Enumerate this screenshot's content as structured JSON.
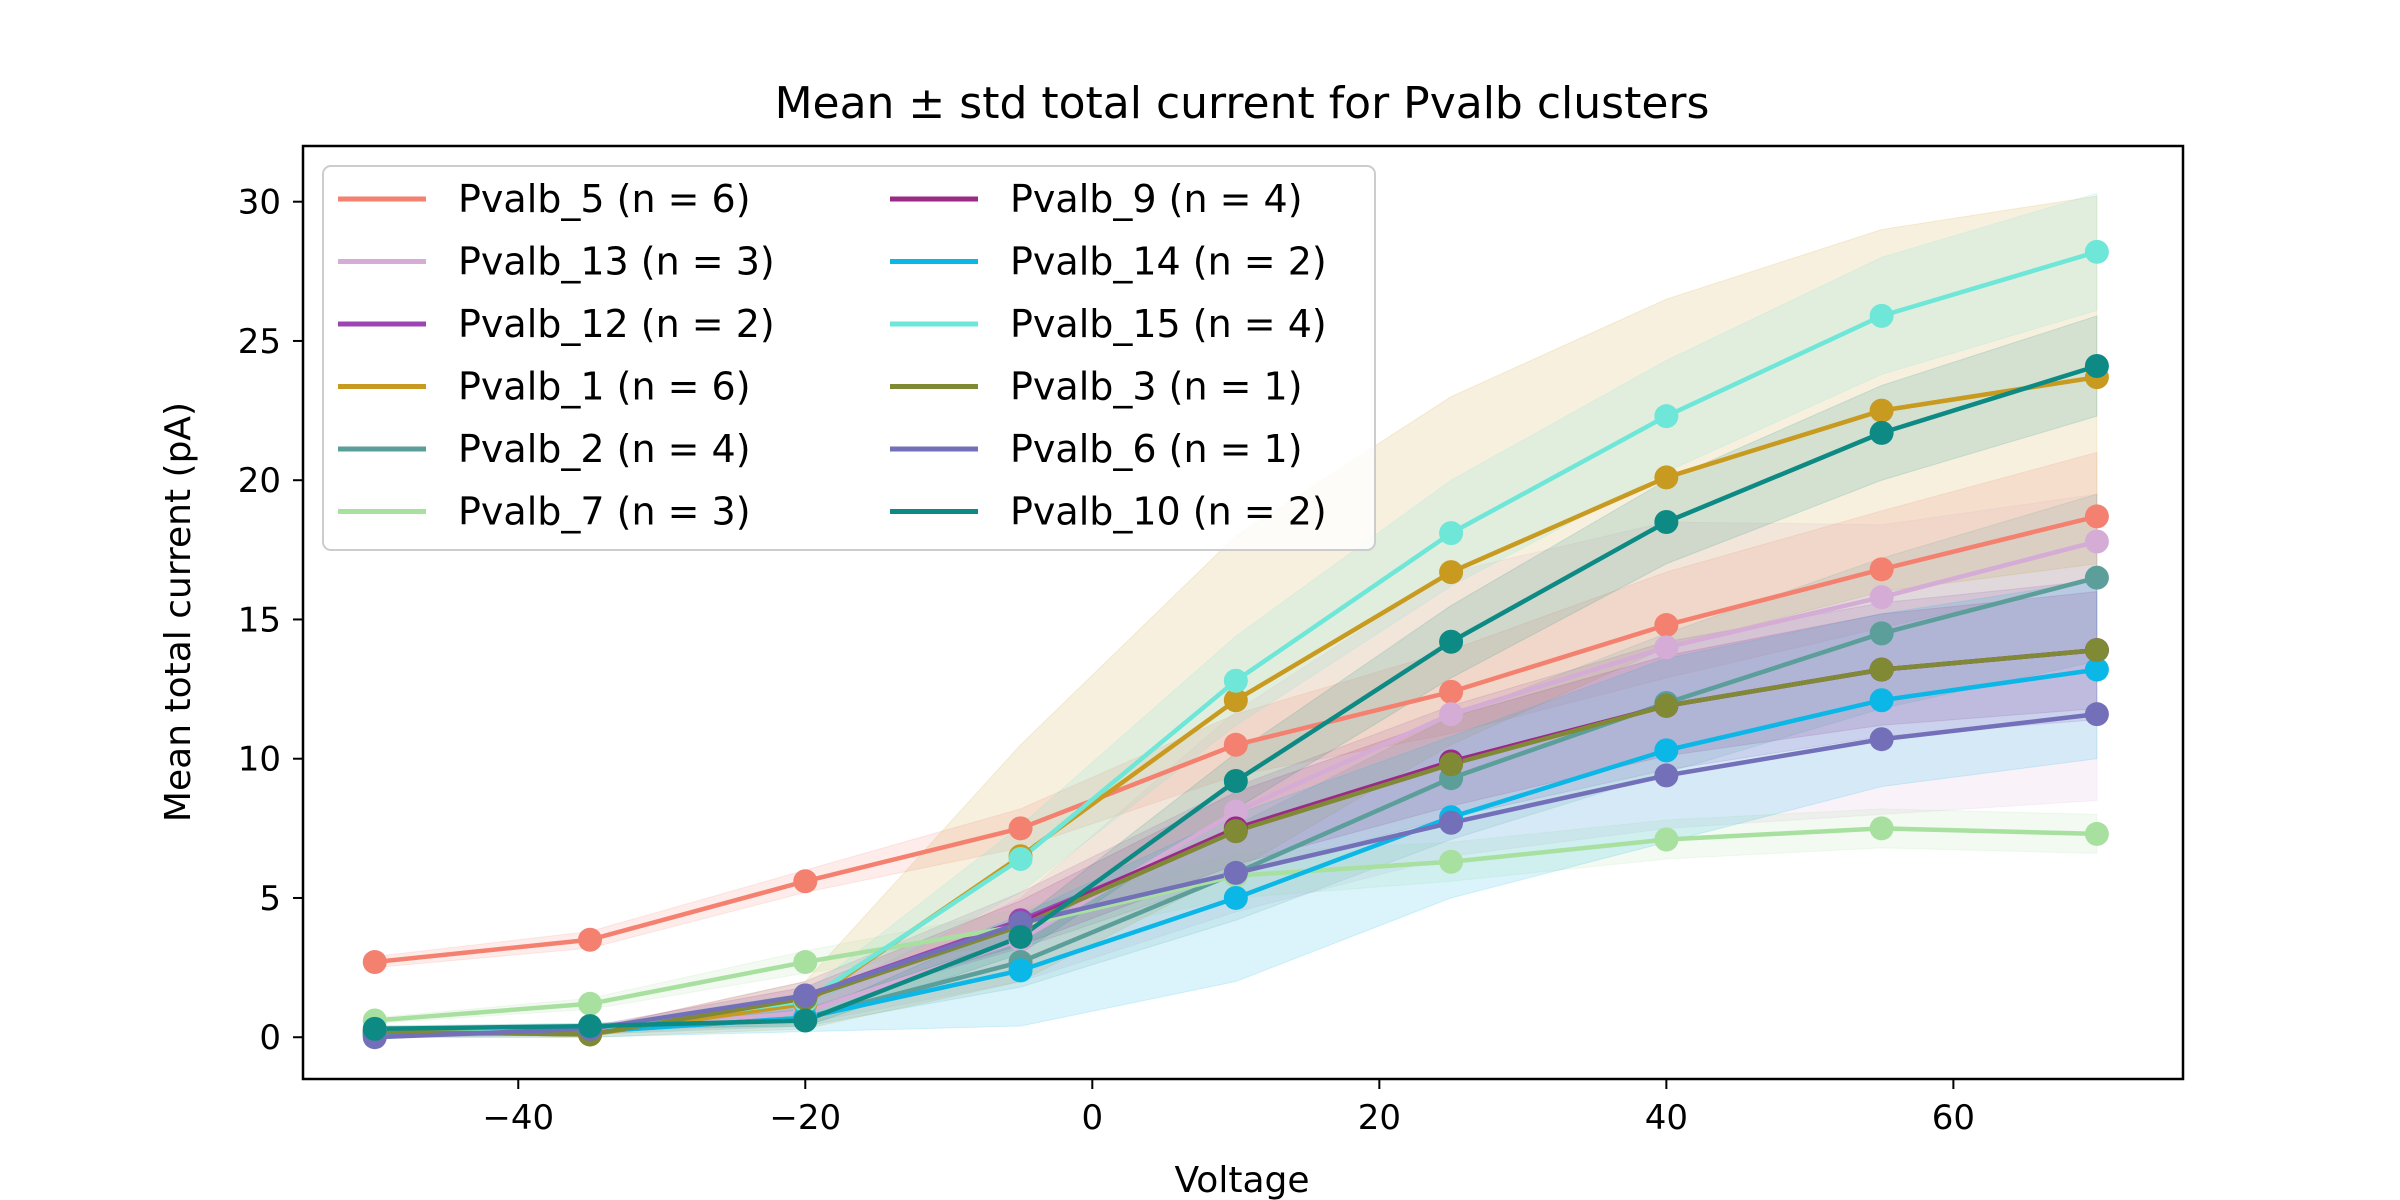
{
  "chart_data": {
    "type": "line",
    "title": "Mean ± std total current for Pvalb clusters",
    "xlabel": "Voltage",
    "ylabel": "Mean total current (pA)",
    "xlim": [
      -55,
      76
    ],
    "ylim": [
      -1.5,
      32
    ],
    "xticks": [
      -40,
      -20,
      0,
      20,
      40,
      60
    ],
    "xtick_labels": [
      "−40",
      "−20",
      "0",
      "20",
      "40",
      "60"
    ],
    "yticks": [
      0,
      5,
      10,
      15,
      20,
      25,
      30
    ],
    "ytick_labels": [
      "0",
      "5",
      "10",
      "15",
      "20",
      "25",
      "30"
    ],
    "grid": false,
    "legend_position": "upper-left",
    "legend_columns": 2,
    "x": [
      -50,
      -35,
      -20,
      -5,
      10,
      25,
      40,
      55,
      70
    ],
    "series": [
      {
        "name": "Pvalb_5 (n = 6)",
        "color": "#f4806f",
        "values": [
          2.7,
          3.5,
          5.6,
          7.5,
          10.5,
          12.4,
          14.8,
          16.8,
          18.7
        ],
        "std_lower": [
          2.5,
          3.2,
          5.2,
          6.8,
          9.4,
          10.9,
          12.9,
          14.7,
          16.4
        ],
        "std_upper": [
          2.9,
          3.8,
          6.0,
          8.2,
          11.6,
          13.9,
          16.7,
          18.9,
          21.0
        ]
      },
      {
        "name": "Pvalb_13 (n = 3)",
        "color": "#d4acd6",
        "values": [
          0.1,
          0.2,
          0.9,
          3.5,
          8.1,
          11.6,
          14.0,
          15.8,
          17.8
        ],
        "std_lower": [
          0.0,
          0.1,
          0.5,
          2.0,
          4.5,
          6.5,
          7.5,
          8.0,
          8.5
        ],
        "std_upper": [
          0.3,
          0.4,
          1.3,
          5.0,
          11.7,
          16.7,
          18.5,
          18.4,
          19.5
        ]
      },
      {
        "name": "Pvalb_12 (n = 2)",
        "color": "#9d44b5",
        "values": [
          0.1,
          0.2,
          1.5,
          4.2,
          7.4,
          9.9,
          11.9,
          13.2,
          13.9
        ],
        "std_lower": [
          0.0,
          0.1,
          1.0,
          3.2,
          5.8,
          7.9,
          9.6,
          10.8,
          11.4
        ],
        "std_upper": [
          0.2,
          0.3,
          2.0,
          5.2,
          9.0,
          11.9,
          14.2,
          15.6,
          16.4
        ]
      },
      {
        "name": "Pvalb_1 (n = 6)",
        "color": "#c89a1f",
        "values": [
          0.2,
          0.1,
          1.2,
          6.5,
          12.1,
          16.7,
          20.1,
          22.5,
          23.7
        ],
        "std_lower": [
          0.0,
          0.0,
          0.3,
          2.0,
          6.0,
          10.5,
          14.0,
          16.0,
          17.0
        ],
        "std_upper": [
          0.4,
          0.3,
          2.0,
          10.5,
          18.0,
          23.0,
          26.5,
          29.0,
          30.2
        ]
      },
      {
        "name": "Pvalb_2 (n = 4)",
        "color": "#5b9e9a",
        "values": [
          0.1,
          0.2,
          0.7,
          2.7,
          5.9,
          9.3,
          12.0,
          14.5,
          16.5
        ],
        "std_lower": [
          0.0,
          0.1,
          0.4,
          1.8,
          4.2,
          7.1,
          9.5,
          11.8,
          13.5
        ],
        "std_upper": [
          0.2,
          0.3,
          1.0,
          3.6,
          7.6,
          11.5,
          14.5,
          17.2,
          19.5
        ]
      },
      {
        "name": "Pvalb_7 (n = 3)",
        "color": "#a8e0a0",
        "values": [
          0.6,
          1.2,
          2.7,
          4.0,
          5.8,
          6.3,
          7.1,
          7.5,
          7.3
        ],
        "std_lower": [
          0.5,
          1.0,
          2.3,
          3.4,
          5.0,
          5.6,
          6.4,
          6.8,
          6.6
        ],
        "std_upper": [
          0.7,
          1.4,
          3.1,
          4.6,
          6.6,
          7.0,
          7.8,
          8.2,
          8.0
        ]
      },
      {
        "name": "Pvalb_9 (n = 4)",
        "color": "#9b2a86",
        "values": [
          0.2,
          0.3,
          1.4,
          4.1,
          7.5,
          9.9,
          11.9,
          13.2,
          13.9
        ],
        "std_lower": [
          0.1,
          0.2,
          1.0,
          3.3,
          6.2,
          8.3,
          10.1,
          11.2,
          11.8
        ],
        "std_upper": [
          0.3,
          0.4,
          1.8,
          4.9,
          8.8,
          11.5,
          13.7,
          15.2,
          16.0
        ]
      },
      {
        "name": "Pvalb_14 (n = 2)",
        "color": "#0bb7e6",
        "values": [
          0.1,
          0.2,
          0.7,
          2.4,
          5.0,
          7.9,
          10.3,
          12.1,
          13.2
        ],
        "std_lower": [
          0.0,
          0.0,
          0.2,
          0.4,
          2.0,
          5.0,
          7.0,
          9.0,
          10.0
        ],
        "std_upper": [
          0.2,
          0.4,
          1.2,
          4.4,
          8.0,
          10.8,
          13.6,
          15.2,
          16.4
        ]
      },
      {
        "name": "Pvalb_15 (n = 4)",
        "color": "#6ee6d8",
        "values": [
          0.3,
          0.3,
          1.3,
          6.4,
          12.8,
          18.1,
          22.3,
          25.9,
          28.2
        ],
        "std_lower": [
          0.2,
          0.2,
          1.0,
          5.2,
          11.2,
          16.2,
          20.3,
          23.8,
          26.1
        ],
        "std_upper": [
          0.4,
          0.4,
          1.6,
          7.6,
          14.4,
          20.0,
          24.3,
          28.0,
          30.3
        ]
      },
      {
        "name": "Pvalb_3 (n = 1)",
        "color": "#808a35",
        "values": [
          0.2,
          0.1,
          1.4,
          4.0,
          7.4,
          9.8,
          11.9,
          13.2,
          13.9
        ],
        "std_lower": null,
        "std_upper": null
      },
      {
        "name": "Pvalb_6 (n = 1)",
        "color": "#7370b9",
        "values": [
          0.0,
          0.3,
          1.5,
          4.1,
          5.9,
          7.7,
          9.4,
          10.7,
          11.6
        ],
        "std_lower": null,
        "std_upper": null
      },
      {
        "name": "Pvalb_10 (n = 2)",
        "color": "#0e8a85",
        "values": [
          0.3,
          0.4,
          0.6,
          3.6,
          9.2,
          14.2,
          18.5,
          21.7,
          24.1
        ],
        "std_lower": [
          0.2,
          0.3,
          0.4,
          3.0,
          8.2,
          12.9,
          17.0,
          20.0,
          22.3
        ],
        "std_upper": [
          0.4,
          0.5,
          0.8,
          4.2,
          10.2,
          15.5,
          20.0,
          23.4,
          25.9
        ]
      }
    ]
  }
}
